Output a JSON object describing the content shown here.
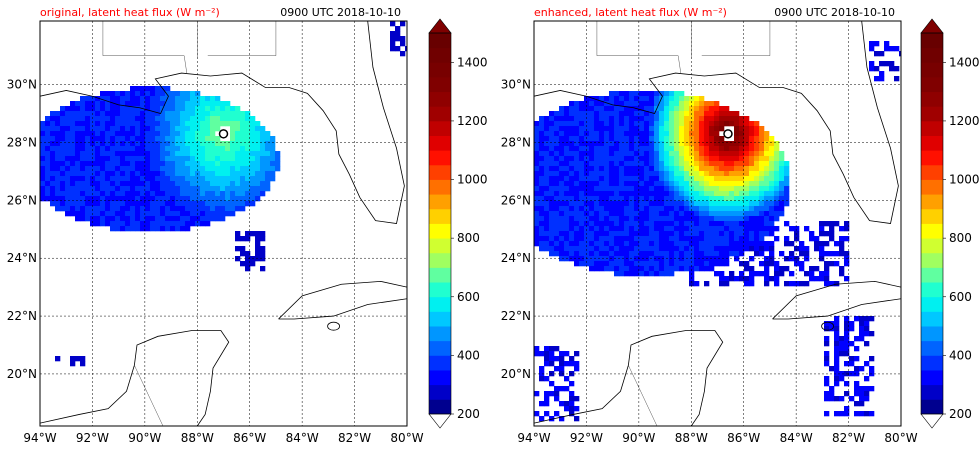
{
  "chart_data": [
    {
      "type": "heatmap",
      "title": "original, latent heat flux (W m⁻²)",
      "time_label": "0900 UTC 2018-10-10",
      "lon_range": [
        -94,
        -80
      ],
      "lat_range": [
        18.2,
        32.2
      ],
      "x_ticks": [
        "94°W",
        "92°W",
        "90°W",
        "88°W",
        "86°W",
        "84°W",
        "82°W",
        "80°W"
      ],
      "y_ticks": [
        "20°N",
        "22°N",
        "24°N",
        "26°N",
        "28°N",
        "30°N"
      ],
      "grid": true,
      "storm_center": {
        "lon": -87.0,
        "lat": 28.3
      },
      "peak_value": 700,
      "colorbar": {
        "levels": [
          200,
          250,
          300,
          350,
          400,
          450,
          500,
          550,
          600,
          650,
          700,
          750,
          800,
          850,
          900,
          950,
          1000,
          1050,
          1100,
          1150,
          1200,
          1250,
          1300,
          1350,
          1400,
          1450,
          1500
        ],
        "tick_labels": [
          "200",
          "400",
          "600",
          "800",
          "1000",
          "1200",
          "1400"
        ],
        "extend": "both"
      }
    },
    {
      "type": "heatmap",
      "title": "enhanced, latent heat flux (W m⁻²)",
      "time_label": "0900 UTC 2018-10-10",
      "lon_range": [
        -94,
        -80
      ],
      "lat_range": [
        18.2,
        32.2
      ],
      "x_ticks": [
        "94°W",
        "92°W",
        "90°W",
        "88°W",
        "86°W",
        "84°W",
        "82°W",
        "80°W"
      ],
      "y_ticks": [
        "20°N",
        "22°N",
        "24°N",
        "26°N",
        "28°N",
        "30°N"
      ],
      "grid": true,
      "storm_center": {
        "lon": -86.6,
        "lat": 28.3
      },
      "peak_value": 1400,
      "colorbar": {
        "levels": [
          200,
          250,
          300,
          350,
          400,
          450,
          500,
          550,
          600,
          650,
          700,
          750,
          800,
          850,
          900,
          950,
          1000,
          1050,
          1100,
          1150,
          1200,
          1250,
          1300,
          1350,
          1400,
          1450,
          1500
        ],
        "tick_labels": [
          "200",
          "400",
          "600",
          "800",
          "1000",
          "1200",
          "1400"
        ],
        "extend": "both"
      }
    }
  ],
  "colors": {
    "below": "#ffffff",
    "above": "#7f0000",
    "bands": [
      "#00008f",
      "#0000c8",
      "#0000ff",
      "#0030ff",
      "#0064ff",
      "#0096ff",
      "#00c8ff",
      "#00f0f0",
      "#20ffd0",
      "#60ffa0",
      "#a0ff60",
      "#d0ff30",
      "#ffff00",
      "#ffd000",
      "#ffa000",
      "#ff7000",
      "#ff4000",
      "#ff1000",
      "#e00000",
      "#c00000",
      "#a00000",
      "#8f0000",
      "#800000",
      "#780000",
      "#700000",
      "#680000"
    ]
  }
}
